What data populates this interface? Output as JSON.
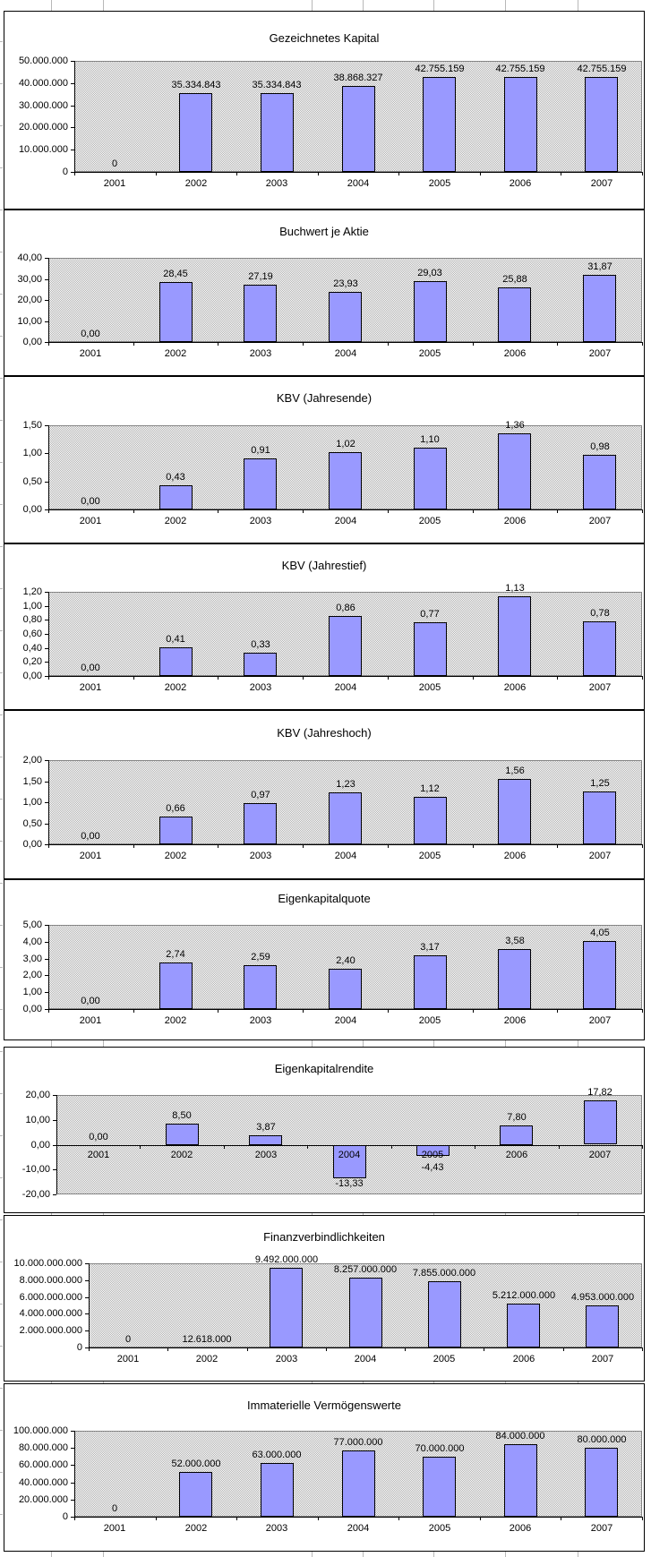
{
  "colors": {
    "bar_fill": "#9999ff",
    "bar_border": "#000000",
    "plot_pattern_dot": "#b0b0b0",
    "plot_border": "#848484",
    "axis": "#000000",
    "chart_border": "#000000",
    "sheet_grid_line": "#b8b8b8",
    "background": "#ffffff"
  },
  "chart_data": [
    {
      "type": "bar",
      "title": "Gezeichnetes Kapital",
      "categories": [
        "2001",
        "2002",
        "2003",
        "2004",
        "2005",
        "2006",
        "2007"
      ],
      "values": [
        0,
        35334843,
        35334843,
        38868327,
        42755159,
        42755159,
        42755159
      ],
      "labels": [
        "0",
        "35.334.843",
        "35.334.843",
        "38.868.327",
        "42.755.159",
        "42.755.159",
        "42.755.159"
      ],
      "ylim": [
        0,
        50000000
      ],
      "yticks": [
        "0",
        "10.000.000",
        "20.000.000",
        "30.000.000",
        "40.000.000",
        "50.000.000"
      ],
      "legend": "none",
      "grid": "off"
    },
    {
      "type": "bar",
      "title": "Buchwert je Aktie",
      "categories": [
        "2001",
        "2002",
        "2003",
        "2004",
        "2005",
        "2006",
        "2007"
      ],
      "values": [
        0,
        28.45,
        27.19,
        23.93,
        29.03,
        25.88,
        31.87
      ],
      "labels": [
        "0,00",
        "28,45",
        "27,19",
        "23,93",
        "29,03",
        "25,88",
        "31,87"
      ],
      "ylim": [
        0,
        40
      ],
      "yticks": [
        "0,00",
        "10,00",
        "20,00",
        "30,00",
        "40,00"
      ],
      "legend": "none",
      "grid": "off"
    },
    {
      "type": "bar",
      "title": "KBV (Jahresende)",
      "categories": [
        "2001",
        "2002",
        "2003",
        "2004",
        "2005",
        "2006",
        "2007"
      ],
      "values": [
        0,
        0.43,
        0.91,
        1.02,
        1.1,
        1.36,
        0.98
      ],
      "labels": [
        "0,00",
        "0,43",
        "0,91",
        "1,02",
        "1,10",
        "1,36",
        "0,98"
      ],
      "ylim": [
        0,
        1.5
      ],
      "yticks": [
        "0,00",
        "0,50",
        "1,00",
        "1,50"
      ],
      "legend": "none",
      "grid": "off"
    },
    {
      "type": "bar",
      "title": "KBV (Jahrestief)",
      "categories": [
        "2001",
        "2002",
        "2003",
        "2004",
        "2005",
        "2006",
        "2007"
      ],
      "values": [
        0,
        0.41,
        0.33,
        0.86,
        0.77,
        1.13,
        0.78
      ],
      "labels": [
        "0,00",
        "0,41",
        "0,33",
        "0,86",
        "0,77",
        "1,13",
        "0,78"
      ],
      "ylim": [
        0,
        1.2
      ],
      "yticks": [
        "0,00",
        "0,20",
        "0,40",
        "0,60",
        "0,80",
        "1,00",
        "1,20"
      ],
      "legend": "none",
      "grid": "off"
    },
    {
      "type": "bar",
      "title": "KBV (Jahreshoch)",
      "categories": [
        "2001",
        "2002",
        "2003",
        "2004",
        "2005",
        "2006",
        "2007"
      ],
      "values": [
        0,
        0.66,
        0.97,
        1.23,
        1.12,
        1.56,
        1.25
      ],
      "labels": [
        "0,00",
        "0,66",
        "0,97",
        "1,23",
        "1,12",
        "1,56",
        "1,25"
      ],
      "ylim": [
        0,
        2
      ],
      "yticks": [
        "0,00",
        "0,50",
        "1,00",
        "1,50",
        "2,00"
      ],
      "legend": "none",
      "grid": "off"
    },
    {
      "type": "bar",
      "title": "Eigenkapitalquote",
      "categories": [
        "2001",
        "2002",
        "2003",
        "2004",
        "2005",
        "2006",
        "2007"
      ],
      "values": [
        0,
        2.74,
        2.59,
        2.4,
        3.17,
        3.58,
        4.05
      ],
      "labels": [
        "0,00",
        "2,74",
        "2,59",
        "2,40",
        "3,17",
        "3,58",
        "4,05"
      ],
      "ylim": [
        0,
        5
      ],
      "yticks": [
        "0,00",
        "1,00",
        "2,00",
        "3,00",
        "4,00",
        "5,00"
      ],
      "legend": "none",
      "grid": "off"
    },
    {
      "type": "bar",
      "title": "Eigenkapitalrendite",
      "categories": [
        "2001",
        "2002",
        "2003",
        "2004",
        "2005",
        "2006",
        "2007"
      ],
      "values": [
        0,
        8.5,
        3.87,
        -13.33,
        -4.43,
        7.8,
        17.82
      ],
      "labels": [
        "0,00",
        "8,50",
        "3,87",
        "-13,33",
        "-4,43",
        "7,80",
        "17,82"
      ],
      "ylim": [
        -20,
        20
      ],
      "yticks": [
        "-20,00",
        "-10,00",
        "0,00",
        "10,00",
        "20,00"
      ],
      "legend": "none",
      "grid": "off"
    },
    {
      "type": "bar",
      "title": "Finanzverbindlichkeiten",
      "categories": [
        "2001",
        "2002",
        "2003",
        "2004",
        "2005",
        "2006",
        "2007"
      ],
      "values": [
        0,
        12618000,
        9492000000,
        8257000000,
        7855000000,
        5212000000,
        4953000000
      ],
      "labels": [
        "0",
        "12.618.000",
        "9.492.000.000",
        "8.257.000.000",
        "7.855.000.000",
        "5.212.000.000",
        "4.953.000.000"
      ],
      "ylim": [
        0,
        10000000000
      ],
      "yticks": [
        "0",
        "2.000.000.000",
        "4.000.000.000",
        "6.000.000.000",
        "8.000.000.000",
        "10.000.000.000"
      ],
      "legend": "none",
      "grid": "off"
    },
    {
      "type": "bar",
      "title": "Immaterielle Vermögenswerte",
      "categories": [
        "2001",
        "2002",
        "2003",
        "2004",
        "2005",
        "2006",
        "2007"
      ],
      "values": [
        0,
        52000000,
        63000000,
        77000000,
        70000000,
        84000000,
        80000000
      ],
      "labels": [
        "0",
        "52.000.000",
        "63.000.000",
        "77.000.000",
        "70.000.000",
        "84.000.000",
        "80.000.000"
      ],
      "ylim": [
        0,
        100000000
      ],
      "yticks": [
        "0",
        "20.000.000",
        "40.000.000",
        "60.000.000",
        "80.000.000",
        "100.000.000"
      ],
      "legend": "none",
      "grid": "off"
    }
  ]
}
